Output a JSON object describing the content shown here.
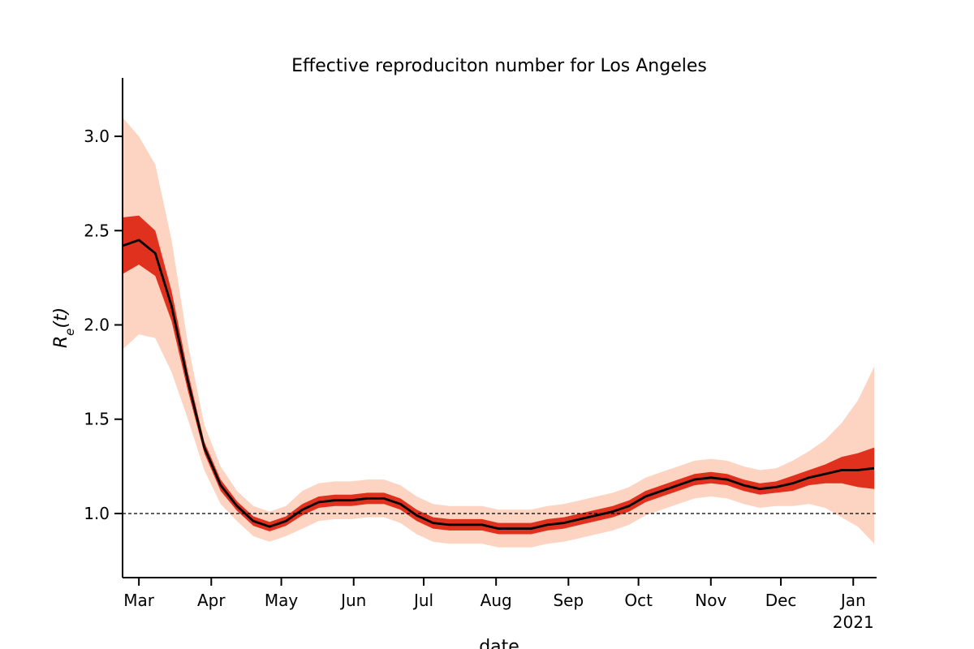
{
  "chart_data": {
    "type": "fan",
    "title": "Effective reproduciton number for Los Angeles",
    "xlabel": "date",
    "ylabel": [
      "R",
      "e",
      "(t)"
    ],
    "x": [
      54,
      61,
      68,
      75,
      82,
      89,
      96,
      103,
      110,
      117,
      124,
      131,
      138,
      145,
      152,
      159,
      166,
      173,
      180,
      187,
      194,
      201,
      208,
      215,
      222,
      229,
      236,
      243,
      250,
      257,
      264,
      271,
      278,
      285,
      292,
      299,
      306,
      313,
      320,
      327,
      334,
      341,
      348,
      355,
      362,
      369,
      376
    ],
    "xlim": [
      54,
      377
    ],
    "xticks": [
      {
        "value": 61,
        "label": "Mar"
      },
      {
        "value": 92,
        "label": "Apr"
      },
      {
        "value": 122,
        "label": "May"
      },
      {
        "value": 153,
        "label": "Jun"
      },
      {
        "value": 183,
        "label": "Jul"
      },
      {
        "value": 214,
        "label": "Aug"
      },
      {
        "value": 245,
        "label": "Sep"
      },
      {
        "value": 275,
        "label": "Oct"
      },
      {
        "value": 306,
        "label": "Nov"
      },
      {
        "value": 336,
        "label": "Dec"
      },
      {
        "value": 367,
        "label": "Jan",
        "sublabel": "2021"
      }
    ],
    "ylim": [
      0.66,
      3.31
    ],
    "yticks": [
      {
        "value": 1,
        "label": "1.0"
      },
      1.5,
      {
        "value": 2,
        "label": "2.0"
      },
      2.5,
      {
        "value": 3,
        "label": "3.0"
      }
    ],
    "hline": {
      "value": 1,
      "color": "#000000"
    },
    "bands": [
      {
        "color": "#fdd3c1",
        "lower": [
          1.87,
          1.95,
          1.93,
          1.75,
          1.5,
          1.23,
          1.05,
          0.96,
          0.88,
          0.85,
          0.88,
          0.92,
          0.96,
          0.97,
          0.97,
          0.98,
          0.98,
          0.95,
          0.89,
          0.85,
          0.84,
          0.84,
          0.84,
          0.82,
          0.82,
          0.82,
          0.84,
          0.85,
          0.87,
          0.89,
          0.91,
          0.94,
          0.99,
          1.02,
          1.05,
          1.08,
          1.09,
          1.08,
          1.05,
          1.03,
          1.04,
          1.04,
          1.05,
          1.03,
          0.98,
          0.93,
          0.84
        ],
        "upper": [
          3.1,
          3.0,
          2.85,
          2.45,
          1.9,
          1.47,
          1.25,
          1.12,
          1.04,
          1.01,
          1.04,
          1.12,
          1.16,
          1.17,
          1.17,
          1.18,
          1.18,
          1.15,
          1.09,
          1.05,
          1.04,
          1.04,
          1.04,
          1.02,
          1.02,
          1.02,
          1.04,
          1.05,
          1.07,
          1.09,
          1.11,
          1.14,
          1.19,
          1.22,
          1.25,
          1.28,
          1.29,
          1.28,
          1.25,
          1.23,
          1.24,
          1.28,
          1.33,
          1.39,
          1.48,
          1.6,
          1.78
        ]
      },
      {
        "color": "#e0301e",
        "lower": [
          2.27,
          2.32,
          2.26,
          2.02,
          1.65,
          1.32,
          1.12,
          1.015,
          0.935,
          0.905,
          0.935,
          0.99,
          1.03,
          1.04,
          1.04,
          1.05,
          1.05,
          1.02,
          0.96,
          0.92,
          0.91,
          0.91,
          0.91,
          0.89,
          0.89,
          0.89,
          0.91,
          0.92,
          0.94,
          0.96,
          0.98,
          1.01,
          1.06,
          1.09,
          1.12,
          1.15,
          1.16,
          1.15,
          1.12,
          1.1,
          1.11,
          1.12,
          1.15,
          1.16,
          1.16,
          1.14,
          1.13
        ],
        "upper": [
          2.57,
          2.58,
          2.5,
          2.18,
          1.75,
          1.38,
          1.18,
          1.065,
          0.985,
          0.955,
          0.985,
          1.05,
          1.09,
          1.1,
          1.1,
          1.11,
          1.11,
          1.08,
          1.02,
          0.98,
          0.97,
          0.97,
          0.97,
          0.95,
          0.95,
          0.95,
          0.97,
          0.98,
          1.0,
          1.02,
          1.04,
          1.07,
          1.12,
          1.15,
          1.18,
          1.21,
          1.22,
          1.21,
          1.18,
          1.16,
          1.17,
          1.2,
          1.23,
          1.26,
          1.3,
          1.32,
          1.35
        ]
      }
    ],
    "series": [
      {
        "color": "#000000",
        "values": [
          2.42,
          2.45,
          2.38,
          2.1,
          1.7,
          1.35,
          1.15,
          1.04,
          0.96,
          0.93,
          0.96,
          1.02,
          1.06,
          1.07,
          1.07,
          1.08,
          1.08,
          1.05,
          0.99,
          0.95,
          0.94,
          0.94,
          0.94,
          0.92,
          0.92,
          0.92,
          0.94,
          0.95,
          0.97,
          0.99,
          1.01,
          1.04,
          1.09,
          1.12,
          1.15,
          1.18,
          1.19,
          1.18,
          1.15,
          1.13,
          1.14,
          1.16,
          1.19,
          1.21,
          1.23,
          1.23,
          1.24
        ]
      }
    ]
  }
}
